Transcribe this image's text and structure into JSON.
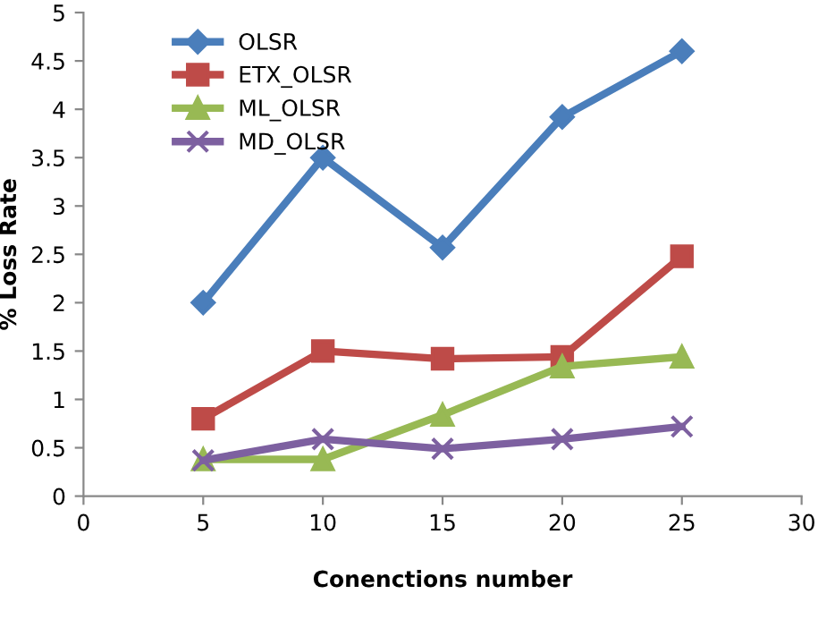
{
  "chart_data": {
    "type": "line",
    "xlabel": "Conenctions number",
    "ylabel": "% Loss Rate",
    "x": [
      5,
      10,
      15,
      20,
      25
    ],
    "series": [
      {
        "name": "OLSR",
        "color": "#4a7ebb",
        "marker": "diamond",
        "values": [
          2.0,
          3.5,
          2.57,
          3.92,
          4.6
        ]
      },
      {
        "name": "ETX_OLSR",
        "color": "#be4b48",
        "marker": "square",
        "values": [
          0.8,
          1.5,
          1.42,
          1.44,
          2.48
        ]
      },
      {
        "name": "ML_OLSR",
        "color": "#98b954",
        "marker": "triangle",
        "values": [
          0.38,
          0.38,
          0.84,
          1.34,
          1.44
        ]
      },
      {
        "name": "MD_OLSR",
        "color": "#7d60a0",
        "marker": "cross",
        "values": [
          0.37,
          0.59,
          0.49,
          0.59,
          0.72
        ]
      }
    ],
    "xlim": [
      0,
      30
    ],
    "xticks": [
      0,
      5,
      10,
      15,
      20,
      25,
      30
    ],
    "ylim": [
      0,
      5
    ],
    "yticks": [
      0,
      0.5,
      1,
      1.5,
      2,
      2.5,
      3,
      3.5,
      4,
      4.5,
      5
    ],
    "grid": false,
    "legend": "top left"
  }
}
